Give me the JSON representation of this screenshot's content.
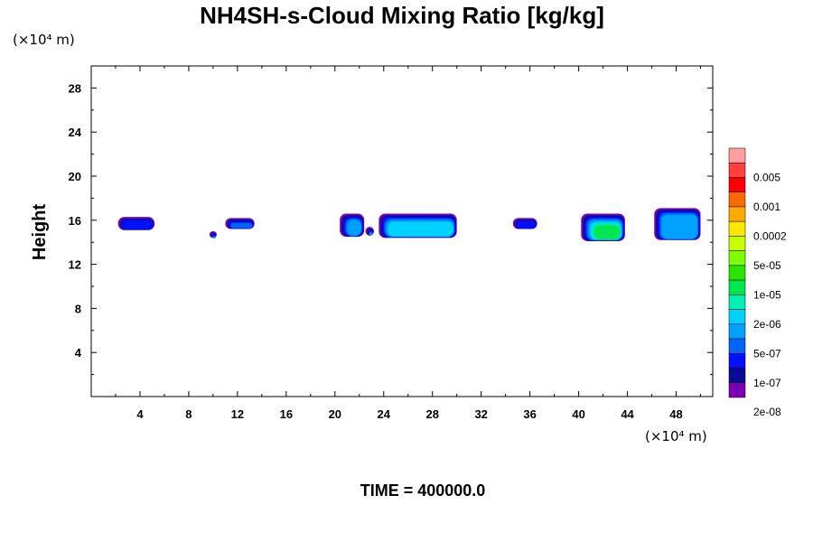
{
  "chart_data": {
    "type": "heatmap",
    "title": "NH4SH-s-Cloud Mixing Ratio [kg/kg]",
    "ylabel": "Height",
    "x_unit": "(×10⁴ m)",
    "y_unit": "(×10⁴ m)",
    "footer": "TIME = 400000.0",
    "xlim": [
      0,
      51
    ],
    "ylim": [
      0,
      30
    ],
    "x_ticks": [
      4,
      8,
      12,
      16,
      20,
      24,
      28,
      32,
      36,
      40,
      44,
      48
    ],
    "y_ticks": [
      4,
      8,
      12,
      16,
      20,
      24,
      28
    ],
    "legend": {
      "labels": [
        "0.005",
        "0.001",
        "0.0002",
        "5e-05",
        "1e-05",
        "2e-06",
        "5e-07",
        "1e-07",
        "2e-08"
      ],
      "colors": [
        "#ff9e9e",
        "#ff4040",
        "#ff0000",
        "#ff6a00",
        "#ffaa00",
        "#ffe600",
        "#c8ff00",
        "#7dff00",
        "#28e600",
        "#00e650",
        "#00f0b4",
        "#00d2ff",
        "#00a0ff",
        "#0064ff",
        "#0010ff",
        "#0a0a96",
        "#7a00b4"
      ]
    },
    "clouds": [
      {
        "x0": 2.2,
        "x1": 5.2,
        "ybot": 15.1,
        "ytop": 16.3,
        "peak": 1
      },
      {
        "x0": 9.7,
        "x1": 10.3,
        "ybot": 14.4,
        "ytop": 15.0,
        "peak": 3
      },
      {
        "x0": 11.0,
        "x1": 13.4,
        "ybot": 15.2,
        "ytop": 16.2,
        "peak": 2
      },
      {
        "x0": 20.4,
        "x1": 22.4,
        "ybot": 14.5,
        "ytop": 16.6,
        "peak": 3
      },
      {
        "x0": 22.5,
        "x1": 23.2,
        "ybot": 14.6,
        "ytop": 15.4,
        "peak": 3
      },
      {
        "x0": 23.6,
        "x1": 30.0,
        "ybot": 14.4,
        "ytop": 16.6,
        "peak": 4
      },
      {
        "x0": 34.6,
        "x1": 36.6,
        "ybot": 15.2,
        "ytop": 16.2,
        "peak": 1
      },
      {
        "x0": 40.2,
        "x1": 43.8,
        "ybot": 14.1,
        "ytop": 16.6,
        "peak": 6
      },
      {
        "x0": 46.2,
        "x1": 50.0,
        "ybot": 14.2,
        "ytop": 17.1,
        "peak": 3
      }
    ]
  }
}
